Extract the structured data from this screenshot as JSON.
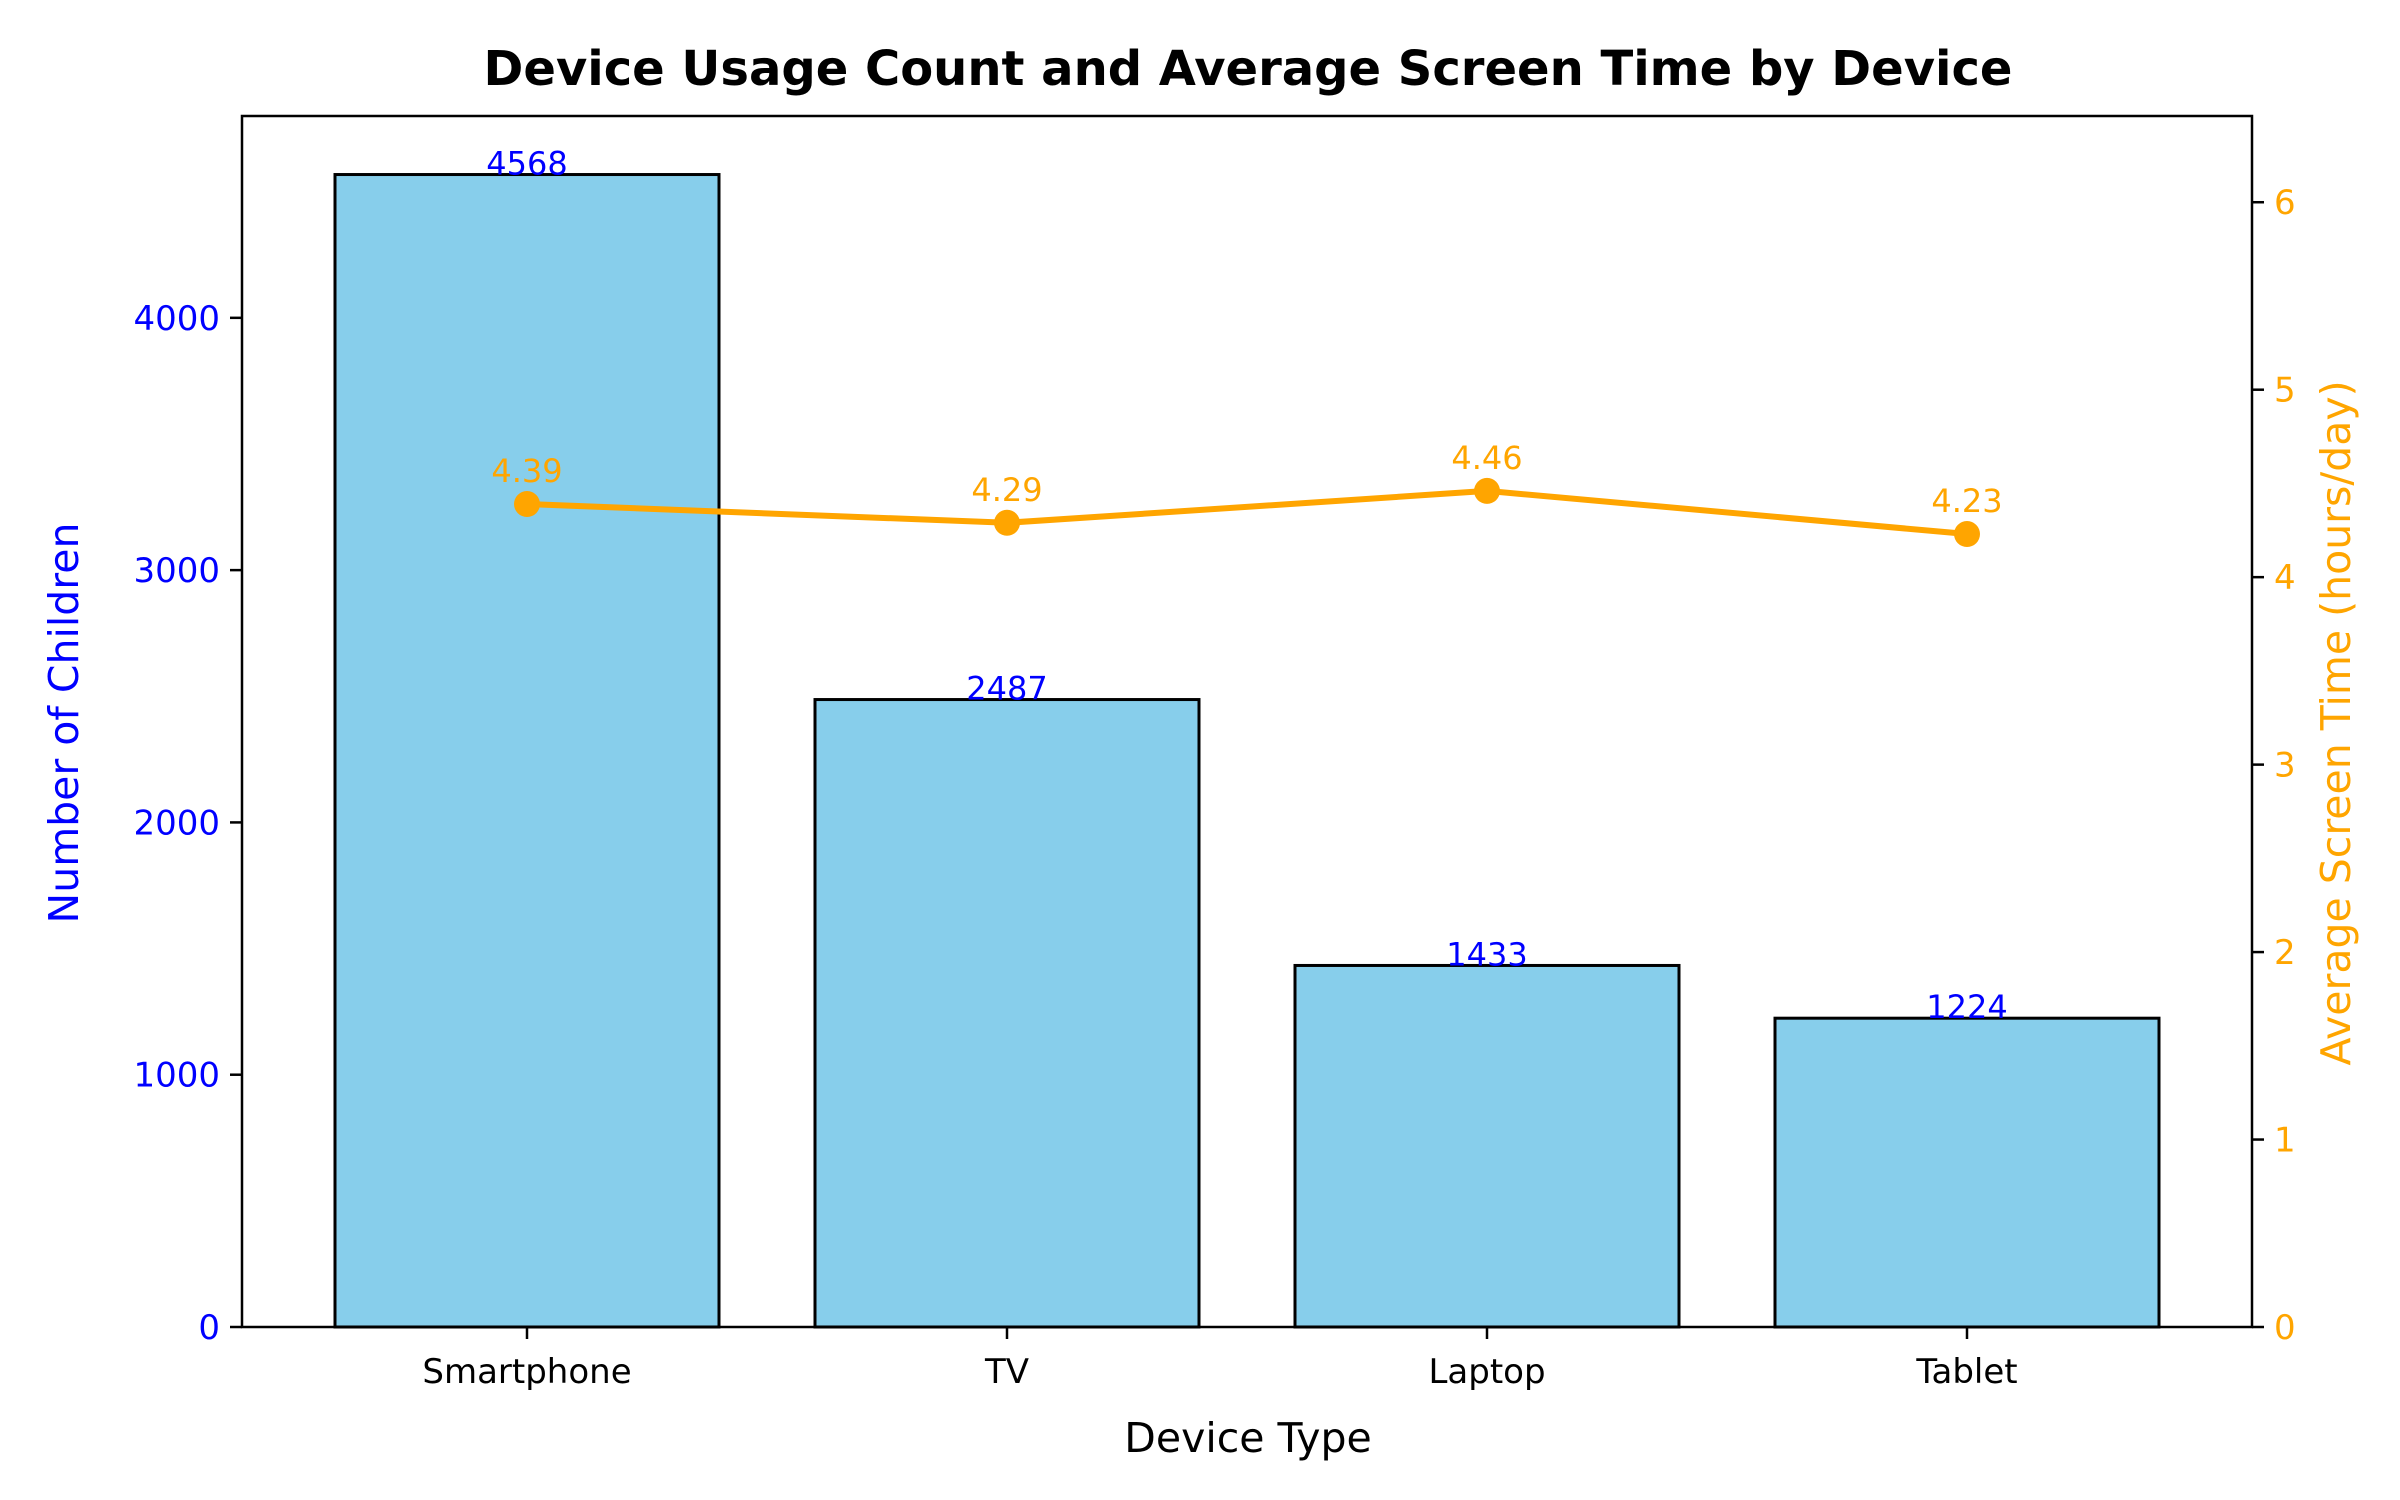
{
  "chart_data": {
    "type": "bar",
    "title": "Device Usage Count and Average Screen Time by Device",
    "xlabel": "Device Type",
    "ylabel": "Number of Children",
    "y2label": "Average Screen Time (hours/day)",
    "categories": [
      "Smartphone",
      "TV",
      "Laptop",
      "Tablet"
    ],
    "series": [
      {
        "type": "bar",
        "axis": "left",
        "values": [
          4568,
          2487,
          1433,
          1224
        ]
      },
      {
        "type": "line",
        "axis": "right",
        "values": [
          4.39,
          4.29,
          4.46,
          4.23
        ]
      }
    ],
    "ylim": [
      0,
      4800
    ],
    "y2lim": [
      0,
      6.46
    ],
    "yticks": [
      0,
      1000,
      2000,
      3000,
      4000
    ],
    "y2ticks": [
      0,
      1,
      2,
      3,
      4,
      5,
      6
    ],
    "grid": false,
    "colors": {
      "bar_fill": "#87CEEB",
      "bar_edge": "#000000",
      "line": "#FFA500",
      "left_axis": "#0000FF",
      "right_axis": "#FFA500",
      "bar_label": "#0000FF",
      "line_label": "#FFA500"
    }
  }
}
